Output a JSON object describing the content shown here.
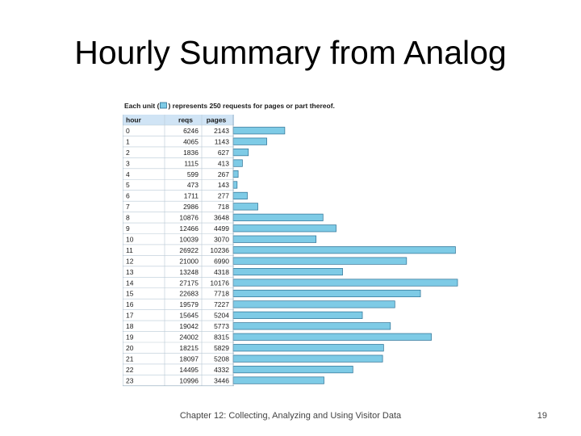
{
  "slide": {
    "title": "Hourly Summary from Analog",
    "footer": "Chapter 12: Collecting, Analyzing and Using Visitor Data",
    "page_number": "19"
  },
  "chart_data": {
    "type": "bar",
    "orientation": "horizontal",
    "legend": {
      "before": "Each unit (",
      "after": ") represents 250 requests for pages or part thereof."
    },
    "columns": [
      "hour",
      "reqs",
      "pages"
    ],
    "bar_color": "#7ecbe6",
    "bar_edge_color": "#2a6f93",
    "header_bg": "#d0e4f5",
    "rows": [
      {
        "hour": "0",
        "reqs": 6246,
        "pages": 2143
      },
      {
        "hour": "1",
        "reqs": 4065,
        "pages": 1143
      },
      {
        "hour": "2",
        "reqs": 1836,
        "pages": 627
      },
      {
        "hour": "3",
        "reqs": 1115,
        "pages": 413
      },
      {
        "hour": "4",
        "reqs": 599,
        "pages": 267
      },
      {
        "hour": "5",
        "reqs": 473,
        "pages": 143
      },
      {
        "hour": "6",
        "reqs": 1711,
        "pages": 277
      },
      {
        "hour": "7",
        "reqs": 2986,
        "pages": 718
      },
      {
        "hour": "8",
        "reqs": 10876,
        "pages": 3648
      },
      {
        "hour": "9",
        "reqs": 12466,
        "pages": 4499
      },
      {
        "hour": "10",
        "reqs": 10039,
        "pages": 3070
      },
      {
        "hour": "11",
        "reqs": 26922,
        "pages": 10236
      },
      {
        "hour": "12",
        "reqs": 21000,
        "pages": 6990
      },
      {
        "hour": "13",
        "reqs": 13248,
        "pages": 4318
      },
      {
        "hour": "14",
        "reqs": 27175,
        "pages": 10176
      },
      {
        "hour": "15",
        "reqs": 22683,
        "pages": 7718
      },
      {
        "hour": "16",
        "reqs": 19579,
        "pages": 7227
      },
      {
        "hour": "17",
        "reqs": 15645,
        "pages": 5204
      },
      {
        "hour": "18",
        "reqs": 19042,
        "pages": 5773
      },
      {
        "hour": "19",
        "reqs": 24002,
        "pages": 8315
      },
      {
        "hour": "20",
        "reqs": 18215,
        "pages": 5829
      },
      {
        "hour": "21",
        "reqs": 18097,
        "pages": 5208
      },
      {
        "hour": "22",
        "reqs": 14495,
        "pages": 4332
      },
      {
        "hour": "23",
        "reqs": 10996,
        "pages": 3446
      }
    ]
  }
}
